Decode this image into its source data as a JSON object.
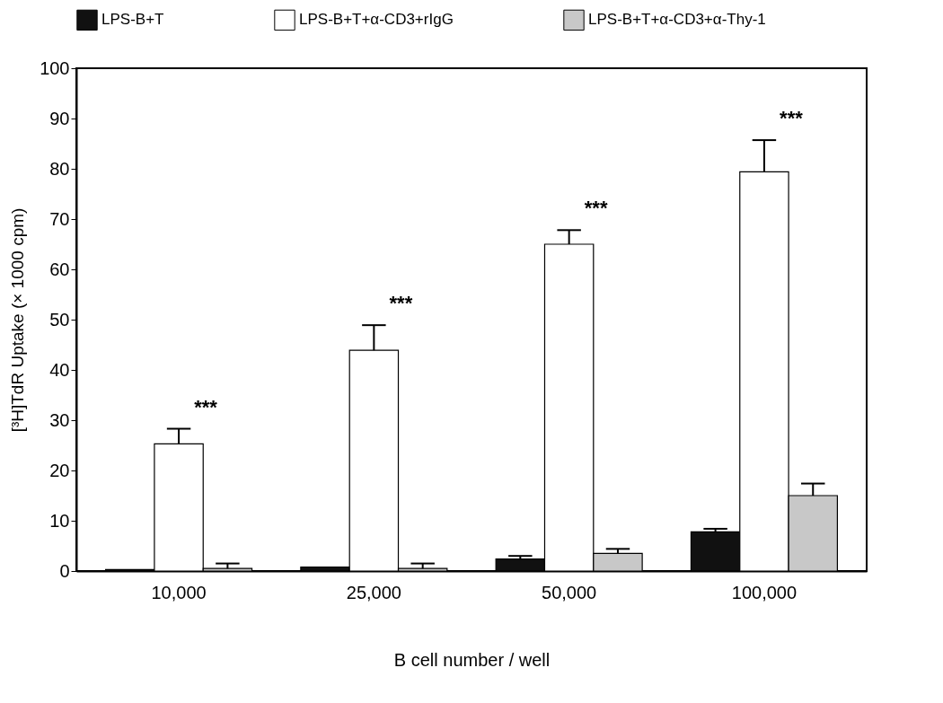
{
  "chart_data": {
    "type": "bar",
    "xlabel": "B cell number / well",
    "ylabel": "[³H]TdR Uptake (× 1000 cpm)",
    "categories": [
      "10,000",
      "25,000",
      "50,000",
      "100,000"
    ],
    "series": [
      {
        "name": "LPS-B+T",
        "color": "#111111",
        "values": [
          0.3,
          0.8,
          2.4,
          7.8
        ],
        "errors": [
          null,
          null,
          0.6,
          0.6
        ]
      },
      {
        "name": "LPS-B+T+α-CD3+rIgG",
        "color": "#ffffff",
        "values": [
          25.3,
          43.9,
          65,
          79.4
        ],
        "errors": [
          3,
          5,
          2.8,
          6.3
        ]
      },
      {
        "name": "LPS-B+T+α-CD3+α-Thy-1",
        "color": "#c8c8c8",
        "values": [
          0.5,
          0.5,
          3.5,
          15
        ],
        "errors": [
          1,
          1,
          0.9,
          2.4
        ]
      }
    ],
    "ylim": [
      0,
      100
    ],
    "yticks": [
      0,
      10,
      20,
      30,
      40,
      50,
      60,
      70,
      80,
      90,
      100
    ],
    "annotations": [
      "***",
      "***",
      "***",
      "***"
    ],
    "grid": false,
    "legend": "top"
  }
}
